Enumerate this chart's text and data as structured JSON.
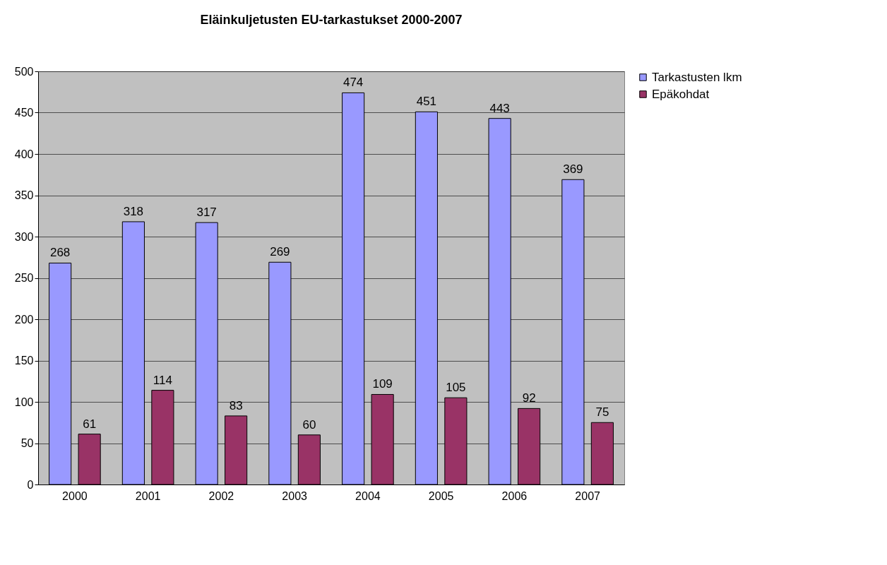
{
  "chart_data": {
    "type": "bar",
    "title": "Eläinkuljetusten EU-tarkastukset 2000-2007",
    "categories": [
      "2000",
      "2001",
      "2002",
      "2003",
      "2004",
      "2005",
      "2006",
      "2007"
    ],
    "series": [
      {
        "name": "Tarkastusten lkm",
        "color": "#9999ff",
        "values": [
          268,
          318,
          317,
          269,
          474,
          451,
          443,
          369
        ]
      },
      {
        "name": "Epäkohdat",
        "color": "#993366",
        "values": [
          61,
          114,
          83,
          60,
          109,
          105,
          92,
          75
        ]
      }
    ],
    "ylim": [
      0,
      500
    ],
    "yticks": [
      0,
      50,
      100,
      150,
      200,
      250,
      300,
      350,
      400,
      450,
      500
    ],
    "grid": "y",
    "legend": "right",
    "data_labels": true
  }
}
